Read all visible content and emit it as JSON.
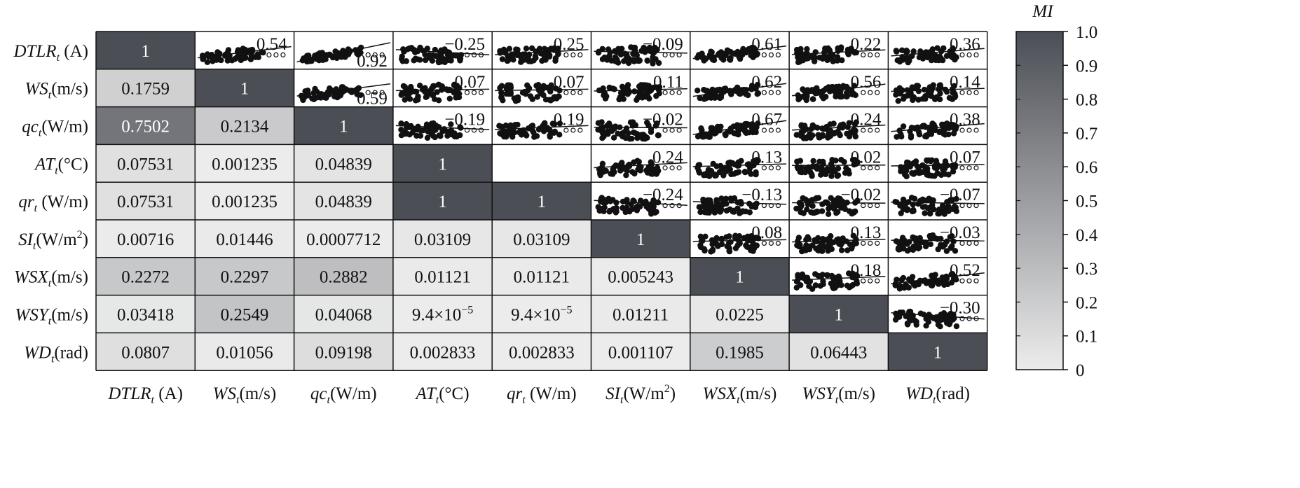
{
  "chart_data": {
    "type": "heatmap",
    "description_lower": "mutual information values",
    "description_upper": "scatter plots with linear fit and correlation coefficient",
    "variables": [
      {
        "name": "DTLR",
        "sub": "t",
        "unit": " (A)",
        "sup": ""
      },
      {
        "name": "WS",
        "sub": "t",
        "unit": "(m/s)",
        "sup": ""
      },
      {
        "name": "qc",
        "sub": "t",
        "unit": "(W/m)",
        "sup": ""
      },
      {
        "name": "AT",
        "sub": "t",
        "unit": "(°C)",
        "sup": ""
      },
      {
        "name": "qr",
        "sub": "t",
        "unit": " (W/m)",
        "sup": ""
      },
      {
        "name": "SI",
        "sub": "t",
        "unit": "(W/m",
        "sup": "2",
        "unit_end": ")"
      },
      {
        "name": "WSX",
        "sub": "t",
        "unit": "(m/s)",
        "sup": ""
      },
      {
        "name": "WSY",
        "sub": "t",
        "unit": "(m/s)",
        "sup": ""
      },
      {
        "name": "WD",
        "sub": "t",
        "unit": "(rad)",
        "sup": ""
      }
    ],
    "mi_matrix": [
      [
        1,
        null,
        null,
        null,
        null,
        null,
        null,
        null,
        null
      ],
      [
        0.1759,
        1,
        null,
        null,
        null,
        null,
        null,
        null,
        null
      ],
      [
        0.7502,
        0.2134,
        1,
        null,
        null,
        null,
        null,
        null,
        null
      ],
      [
        0.07531,
        0.001235,
        0.04839,
        1,
        null,
        null,
        null,
        null,
        null
      ],
      [
        0.07531,
        0.001235,
        0.04839,
        1,
        1,
        null,
        null,
        null,
        null
      ],
      [
        0.00716,
        0.01446,
        0.0007712,
        0.03109,
        0.03109,
        1,
        null,
        null,
        null
      ],
      [
        0.2272,
        0.2297,
        0.2882,
        0.01121,
        0.01121,
        0.005243,
        1,
        null,
        null
      ],
      [
        0.03418,
        0.2549,
        0.04068,
        9.4e-05,
        9.4e-05,
        0.01211,
        0.0225,
        1,
        null
      ],
      [
        0.0807,
        0.01056,
        0.09198,
        0.002833,
        0.002833,
        0.001107,
        0.1985,
        0.06443,
        1
      ]
    ],
    "mi_labels": [
      [
        "1",
        "",
        "",
        "",
        "",
        "",
        "",
        "",
        ""
      ],
      [
        "0.1759",
        "1",
        "",
        "",
        "",
        "",
        "",
        "",
        ""
      ],
      [
        "0.7502",
        "0.2134",
        "1",
        "",
        "",
        "",
        "",
        "",
        ""
      ],
      [
        "0.07531",
        "0.001235",
        "0.04839",
        "1",
        "",
        "",
        "",
        "",
        ""
      ],
      [
        "0.07531",
        "0.001235",
        "0.04839",
        "1",
        "1",
        "",
        "",
        "",
        ""
      ],
      [
        "0.00716",
        "0.01446",
        "0.0007712",
        "0.03109",
        "0.03109",
        "1",
        "",
        "",
        ""
      ],
      [
        "0.2272",
        "0.2297",
        "0.2882",
        "0.01121",
        "0.01121",
        "0.005243",
        "1",
        "",
        ""
      ],
      [
        "0.03418",
        "0.2549",
        "0.04068",
        "9.4×10",
        "9.4×10",
        "0.01211",
        "0.0225",
        "1",
        ""
      ],
      [
        "0.0807",
        "0.01056",
        "0.09198",
        "0.002833",
        "0.002833",
        "0.001107",
        "0.1985",
        "0.06443",
        "1"
      ]
    ],
    "mi_label_superscripts": [
      [
        "",
        "",
        "",
        "",
        "",
        "",
        "",
        "",
        ""
      ],
      [
        "",
        "",
        "",
        "",
        "",
        "",
        "",
        "",
        ""
      ],
      [
        "",
        "",
        "",
        "",
        "",
        "",
        "",
        "",
        ""
      ],
      [
        "",
        "",
        "",
        "",
        "",
        "",
        "",
        "",
        ""
      ],
      [
        "",
        "",
        "",
        "",
        "",
        "",
        "",
        "",
        ""
      ],
      [
        "",
        "",
        "",
        "",
        "",
        "",
        "",
        "",
        ""
      ],
      [
        "",
        "",
        "",
        "",
        "",
        "",
        "",
        "",
        ""
      ],
      [
        "",
        "",
        "",
        "−5",
        "−5",
        "",
        "",
        "",
        ""
      ],
      [
        "",
        "",
        "",
        "",
        "",
        "",
        "",
        "",
        ""
      ]
    ],
    "correlations": [
      {
        "row": 0,
        "col": 1,
        "r": 0.54,
        "label": "0.54"
      },
      {
        "row": 0,
        "col": 2,
        "r": 0.92,
        "label": "0.92"
      },
      {
        "row": 0,
        "col": 3,
        "r": -0.25,
        "label": "−0.25"
      },
      {
        "row": 0,
        "col": 4,
        "r": 0.25,
        "label": "0.25"
      },
      {
        "row": 0,
        "col": 5,
        "r": -0.09,
        "label": "−0.09"
      },
      {
        "row": 0,
        "col": 6,
        "r": 0.61,
        "label": "0.61"
      },
      {
        "row": 0,
        "col": 7,
        "r": 0.22,
        "label": "0.22"
      },
      {
        "row": 0,
        "col": 8,
        "r": 0.36,
        "label": "0.36"
      },
      {
        "row": 1,
        "col": 2,
        "r": 0.59,
        "label": "0.59"
      },
      {
        "row": 1,
        "col": 3,
        "r": 0.07,
        "label": "0.07"
      },
      {
        "row": 1,
        "col": 4,
        "r": 0.07,
        "label": "0.07"
      },
      {
        "row": 1,
        "col": 5,
        "r": 0.11,
        "label": "0.11"
      },
      {
        "row": 1,
        "col": 6,
        "r": 0.62,
        "label": "0.62"
      },
      {
        "row": 1,
        "col": 7,
        "r": 0.56,
        "label": "0.56"
      },
      {
        "row": 1,
        "col": 8,
        "r": 0.14,
        "label": "0.14"
      },
      {
        "row": 2,
        "col": 3,
        "r": -0.19,
        "label": "−0.19"
      },
      {
        "row": 2,
        "col": 4,
        "r": 0.19,
        "label": "0.19"
      },
      {
        "row": 2,
        "col": 5,
        "r": -0.02,
        "label": "−0.02"
      },
      {
        "row": 2,
        "col": 6,
        "r": 0.67,
        "label": "0.67"
      },
      {
        "row": 2,
        "col": 7,
        "r": 0.24,
        "label": "0.24"
      },
      {
        "row": 2,
        "col": 8,
        "r": 0.38,
        "label": "0.38"
      },
      {
        "row": 3,
        "col": 5,
        "r": 0.24,
        "label": "0.24"
      },
      {
        "row": 3,
        "col": 6,
        "r": 0.13,
        "label": "0.13"
      },
      {
        "row": 3,
        "col": 7,
        "r": 0.02,
        "label": "0.02"
      },
      {
        "row": 3,
        "col": 8,
        "r": 0.07,
        "label": "0.07"
      },
      {
        "row": 4,
        "col": 5,
        "r": -0.24,
        "label": "−0.24"
      },
      {
        "row": 4,
        "col": 6,
        "r": -0.13,
        "label": "−0.13"
      },
      {
        "row": 4,
        "col": 7,
        "r": -0.02,
        "label": "−0.02"
      },
      {
        "row": 4,
        "col": 8,
        "r": -0.07,
        "label": "−0.07"
      },
      {
        "row": 5,
        "col": 6,
        "r": 0.08,
        "label": "0.08"
      },
      {
        "row": 5,
        "col": 7,
        "r": 0.13,
        "label": "0.13"
      },
      {
        "row": 5,
        "col": 8,
        "r": -0.03,
        "label": "−0.03"
      },
      {
        "row": 6,
        "col": 7,
        "r": 0.18,
        "label": "0.18"
      },
      {
        "row": 6,
        "col": 8,
        "r": 0.52,
        "label": "0.52"
      },
      {
        "row": 7,
        "col": 8,
        "r": -0.3,
        "label": "−0.30"
      }
    ],
    "colorbar": {
      "label": "MI",
      "range": [
        0,
        1
      ],
      "ticks": [
        "0",
        "0.1",
        "0.2",
        "0.3",
        "0.4",
        "0.5",
        "0.6",
        "0.7",
        "0.8",
        "0.9",
        "1.0"
      ],
      "color_low": "#ececec",
      "color_high": "#4b4e55"
    },
    "diagonal_value": "1"
  },
  "colors": {
    "scatter": "#111111",
    "grid": "#111111",
    "diag_text": "#ffffff",
    "background": "#ffffff"
  }
}
